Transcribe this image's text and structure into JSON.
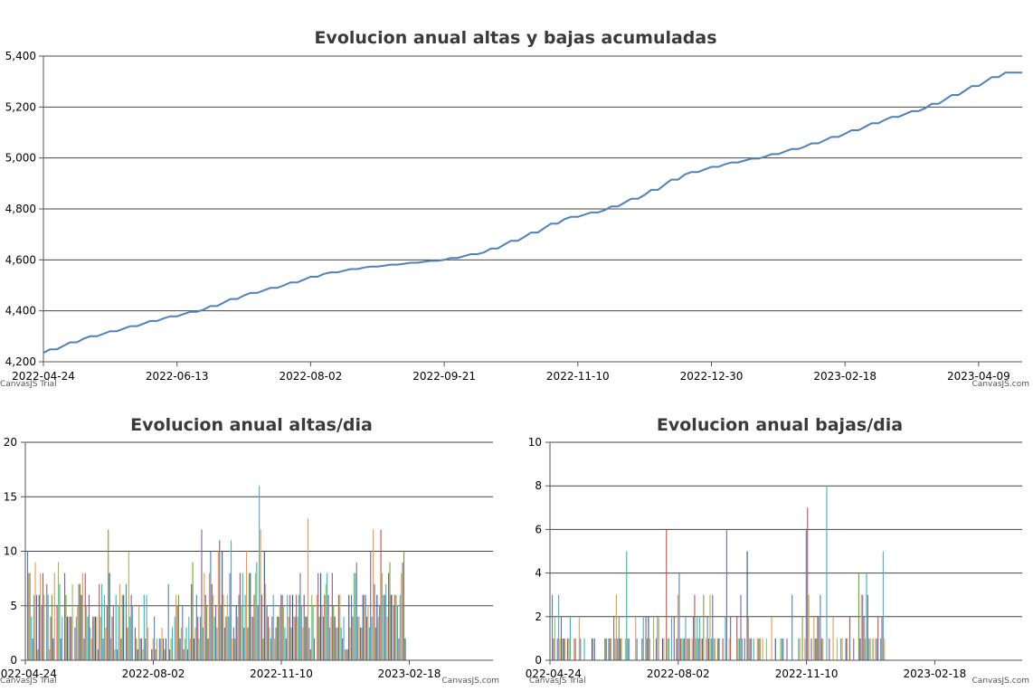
{
  "colors": {
    "line": "#4f81bc",
    "grid": "#444444",
    "axis": "#555555",
    "bar_palette": [
      "#4f81bc",
      "#c0504e",
      "#9bbb58",
      "#23bfaa",
      "#8064a1",
      "#4aacc5",
      "#f79647",
      "#7f6084",
      "#77a033",
      "#33558b",
      "#e59566"
    ]
  },
  "credits": {
    "trial": "CanvasJS Trial",
    "site": "CanvasJS.com"
  },
  "chart_data": [
    {
      "type": "line",
      "title": "Evolucion anual altas y bajas acumuladas",
      "ylim": [
        4200,
        5400
      ],
      "y_ticks": [
        4200,
        4400,
        4600,
        4800,
        5000,
        5200,
        5400
      ],
      "y_tick_labels": [
        "4,200",
        "4,400",
        "4,600",
        "4,800",
        "5,000",
        "5,200",
        "5,400"
      ],
      "x_ticks": [
        "2022-04-24",
        "2022-06-13",
        "2022-08-02",
        "2022-09-21",
        "2022-11-10",
        "2022-12-30",
        "2023-02-18",
        "2023-04-09"
      ],
      "grid": true,
      "series": [
        {
          "x": [
            "2022-04-24",
            "2022-05-09",
            "2022-05-24",
            "2022-06-08",
            "2022-06-23",
            "2022-07-08",
            "2022-07-23",
            "2022-08-07",
            "2022-08-22",
            "2022-09-06",
            "2022-09-21",
            "2022-10-06",
            "2022-10-21",
            "2022-11-05",
            "2022-11-20",
            "2022-12-05",
            "2022-12-20",
            "2023-01-04",
            "2023-01-19",
            "2023-02-03",
            "2023-02-18",
            "2023-03-05",
            "2023-03-20",
            "2023-04-04",
            "2023-04-19"
          ],
          "values": [
            4235,
            4290,
            4330,
            4370,
            4405,
            4460,
            4500,
            4545,
            4570,
            4585,
            4600,
            4630,
            4690,
            4760,
            4795,
            4855,
            4935,
            4975,
            5005,
            5045,
            5095,
            5150,
            5195,
            5265,
            5335
          ]
        }
      ]
    },
    {
      "type": "bar",
      "title": "Evolucion anual altas/dia",
      "ylim": [
        0,
        20
      ],
      "y_ticks": [
        0,
        5,
        10,
        15,
        20
      ],
      "x_ticks": [
        "2022-04-24",
        "2022-08-02",
        "2022-11-10",
        "2023-02-18"
      ],
      "grid": true,
      "series": [
        {
          "x_start": "2022-04-24",
          "values": [
            10,
            8,
            8,
            4,
            2,
            6,
            9,
            6,
            1,
            6,
            8,
            5,
            8,
            6,
            0,
            7,
            6,
            1,
            4,
            6,
            2,
            8,
            0,
            5,
            9,
            7,
            2,
            4,
            0,
            8,
            6,
            4,
            4,
            4,
            4,
            7,
            0,
            3,
            4,
            5,
            7,
            7,
            6,
            8,
            2,
            8,
            5,
            4,
            6,
            3,
            2,
            4,
            4,
            4,
            4,
            1,
            7,
            4,
            7,
            2,
            6,
            3,
            5,
            12,
            8,
            2,
            4,
            5,
            1,
            6,
            1,
            5,
            7,
            2,
            6,
            6,
            0,
            7,
            3,
            10,
            4,
            6,
            5,
            0,
            3,
            2,
            1,
            5,
            2,
            2,
            1,
            6,
            2,
            6,
            3,
            0,
            0,
            1,
            2,
            4,
            1,
            2,
            0,
            2,
            2,
            3,
            2,
            1,
            2,
            0,
            7,
            1,
            2,
            3,
            0,
            4,
            6,
            5,
            6,
            2,
            3,
            5,
            1,
            2,
            3,
            1,
            4,
            2,
            7,
            9,
            2,
            3,
            6,
            4,
            2,
            4,
            12,
            3,
            8,
            6,
            5,
            2,
            8,
            10,
            7,
            6,
            4,
            5,
            3,
            10,
            11,
            5,
            10,
            6,
            3,
            4,
            6,
            4,
            8,
            11,
            2,
            3,
            2,
            5,
            4,
            6,
            8,
            5,
            8,
            3,
            6,
            10,
            3,
            8,
            8,
            4,
            4,
            6,
            8,
            9,
            5,
            16,
            12,
            6,
            2,
            10,
            7,
            5,
            4,
            3,
            2,
            4,
            6,
            2,
            3,
            4,
            4,
            5,
            6,
            6,
            5,
            3,
            2,
            6,
            4,
            6,
            3,
            6,
            4,
            4,
            6,
            4,
            6,
            8,
            5,
            3,
            6,
            4,
            4,
            13,
            3,
            1,
            6,
            5,
            2,
            0,
            6,
            8,
            4,
            8,
            5,
            4,
            6,
            7,
            8,
            6,
            3,
            4,
            8,
            5,
            4,
            3,
            3,
            6,
            6,
            3,
            2,
            4,
            1,
            1,
            1,
            6,
            3,
            6,
            4,
            8,
            8,
            9,
            4,
            4,
            3,
            3,
            6,
            6,
            6,
            4,
            5,
            3,
            10,
            4,
            12,
            7,
            3,
            6,
            4,
            5,
            12,
            8,
            6,
            6,
            7,
            4,
            8,
            9,
            6,
            6,
            5,
            6,
            6,
            5,
            2,
            6,
            8,
            9,
            10,
            2
          ]
        }
      ]
    },
    {
      "type": "bar",
      "title": "Evolucion anual bajas/dia",
      "ylim": [
        0,
        10
      ],
      "y_ticks": [
        0,
        2,
        4,
        6,
        8,
        10
      ],
      "x_ticks": [
        "2022-04-24",
        "2022-08-02",
        "2022-11-10",
        "2023-02-18"
      ],
      "grid": true,
      "series": [
        {
          "x_start": "2022-04-24",
          "values": [
            3,
            1,
            2,
            0,
            1,
            3,
            1,
            2,
            1,
            1,
            1,
            0,
            1,
            1,
            2,
            0,
            0,
            1,
            1,
            0,
            0,
            2,
            1,
            0,
            0,
            1,
            0,
            0,
            0,
            0,
            0,
            1,
            1,
            1,
            0,
            0,
            0,
            0,
            0,
            0,
            0,
            1,
            1,
            0,
            1,
            1,
            1,
            0,
            2,
            1,
            3,
            1,
            2,
            1,
            1,
            0,
            0,
            1,
            5,
            1,
            1,
            0,
            0,
            0,
            0,
            2,
            1,
            0,
            0,
            0,
            1,
            2,
            0,
            2,
            1,
            2,
            1,
            0,
            0,
            2,
            0,
            1,
            2,
            2,
            0,
            0,
            1,
            1,
            0,
            6,
            1,
            1,
            0,
            2,
            0,
            2,
            0,
            1,
            3,
            4,
            1,
            1,
            1,
            1,
            2,
            1,
            1,
            1,
            0,
            1,
            2,
            3,
            1,
            2,
            1,
            2,
            1,
            1,
            3,
            0,
            1,
            2,
            1,
            3,
            1,
            3,
            1,
            1,
            0,
            1,
            1,
            0,
            0,
            1,
            0,
            2,
            6,
            0,
            1,
            2,
            0,
            0,
            0,
            0,
            2,
            1,
            1,
            3,
            1,
            0,
            1,
            0,
            5,
            2,
            1,
            1,
            0,
            1,
            0,
            0,
            1,
            1,
            1,
            0,
            1,
            0,
            0,
            1,
            0,
            0,
            0,
            2,
            0,
            0,
            1,
            0,
            0,
            0,
            1,
            1,
            1,
            0,
            0,
            1,
            0,
            0,
            0,
            3,
            0,
            0,
            0,
            0,
            1,
            1,
            0,
            2,
            0,
            1,
            6,
            7,
            3,
            0,
            1,
            0,
            2,
            1,
            1,
            2,
            2,
            3,
            1,
            1,
            0,
            0,
            8,
            0,
            1,
            0,
            0,
            2,
            0,
            0,
            1,
            0,
            0,
            1,
            1,
            0,
            0,
            1,
            1,
            0,
            2,
            0,
            0,
            1,
            0,
            0,
            0,
            4,
            1,
            3,
            3,
            2,
            1,
            4,
            3,
            1,
            1,
            0,
            1,
            0,
            1,
            1,
            2,
            0,
            1,
            2,
            5,
            1,
            0
          ]
        }
      ]
    }
  ]
}
